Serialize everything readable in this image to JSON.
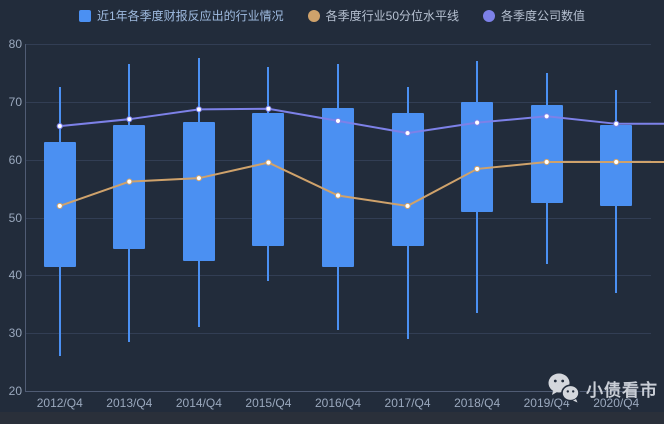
{
  "chart_data": {
    "type": "candlestick+line",
    "title": "",
    "categories": [
      "2012/Q4",
      "2013/Q4",
      "2014/Q4",
      "2015/Q4",
      "2016/Q4",
      "2017/Q4",
      "2018/Q4",
      "2019/Q4",
      "2020/Q4"
    ],
    "y_axis": {
      "min": 20,
      "max": 80,
      "ticks": [
        20,
        30,
        40,
        50,
        60,
        70,
        80
      ]
    },
    "legend_position": "top-center",
    "grid": true,
    "series": [
      {
        "name": "近1年各季度财报反应出的行业情况",
        "type": "candlestick",
        "marker": "square",
        "color": "#4b90f2",
        "values": [
          {
            "low": 26,
            "q1": 41.5,
            "q3": 63,
            "high": 72.5
          },
          {
            "low": 28.5,
            "q1": 44.5,
            "q3": 66,
            "high": 76.5
          },
          {
            "low": 31,
            "q1": 42.5,
            "q3": 66.5,
            "high": 77.5
          },
          {
            "low": 39,
            "q1": 45,
            "q3": 68,
            "high": 76
          },
          {
            "low": 30.5,
            "q1": 41.5,
            "q3": 69,
            "high": 76.5
          },
          {
            "low": 29,
            "q1": 45,
            "q3": 68,
            "high": 72.5
          },
          {
            "low": 33.5,
            "q1": 51,
            "q3": 70,
            "high": 77
          },
          {
            "low": 42,
            "q1": 52.5,
            "q3": 69.5,
            "high": 75
          },
          {
            "low": 37,
            "q1": 52,
            "q3": 66,
            "high": 72
          }
        ]
      },
      {
        "name": "各季度行业50分位水平线",
        "type": "line",
        "marker": "circle",
        "color": "#cfa26b",
        "extend_to_right_edge": true,
        "values": [
          52,
          56.2,
          56.8,
          59.5,
          53.8,
          52,
          58.4,
          59.6,
          59.6
        ]
      },
      {
        "name": "各季度公司数值",
        "type": "line",
        "marker": "circle",
        "color": "#7d81e8",
        "extend_to_right_edge": true,
        "values": [
          65.8,
          67,
          68.7,
          68.8,
          66.7,
          64.6,
          66.4,
          67.5,
          66.2
        ]
      }
    ]
  },
  "watermark": {
    "text": "小债看市",
    "icon": "wechat-logo-icon"
  },
  "colors": {
    "background": "#222c3b",
    "footer_strip": "#2a303a",
    "gridline": "#323e54",
    "axis_line": "#505c74",
    "tick_label": "#9aa8bd",
    "candle": "#4b90f2",
    "line_50pct": "#cfa26b",
    "line_company": "#7d81e8",
    "point_fill": "#ffffff",
    "watermark_text": "#c9ced6",
    "watermark_icon": "#d4d7dc"
  }
}
